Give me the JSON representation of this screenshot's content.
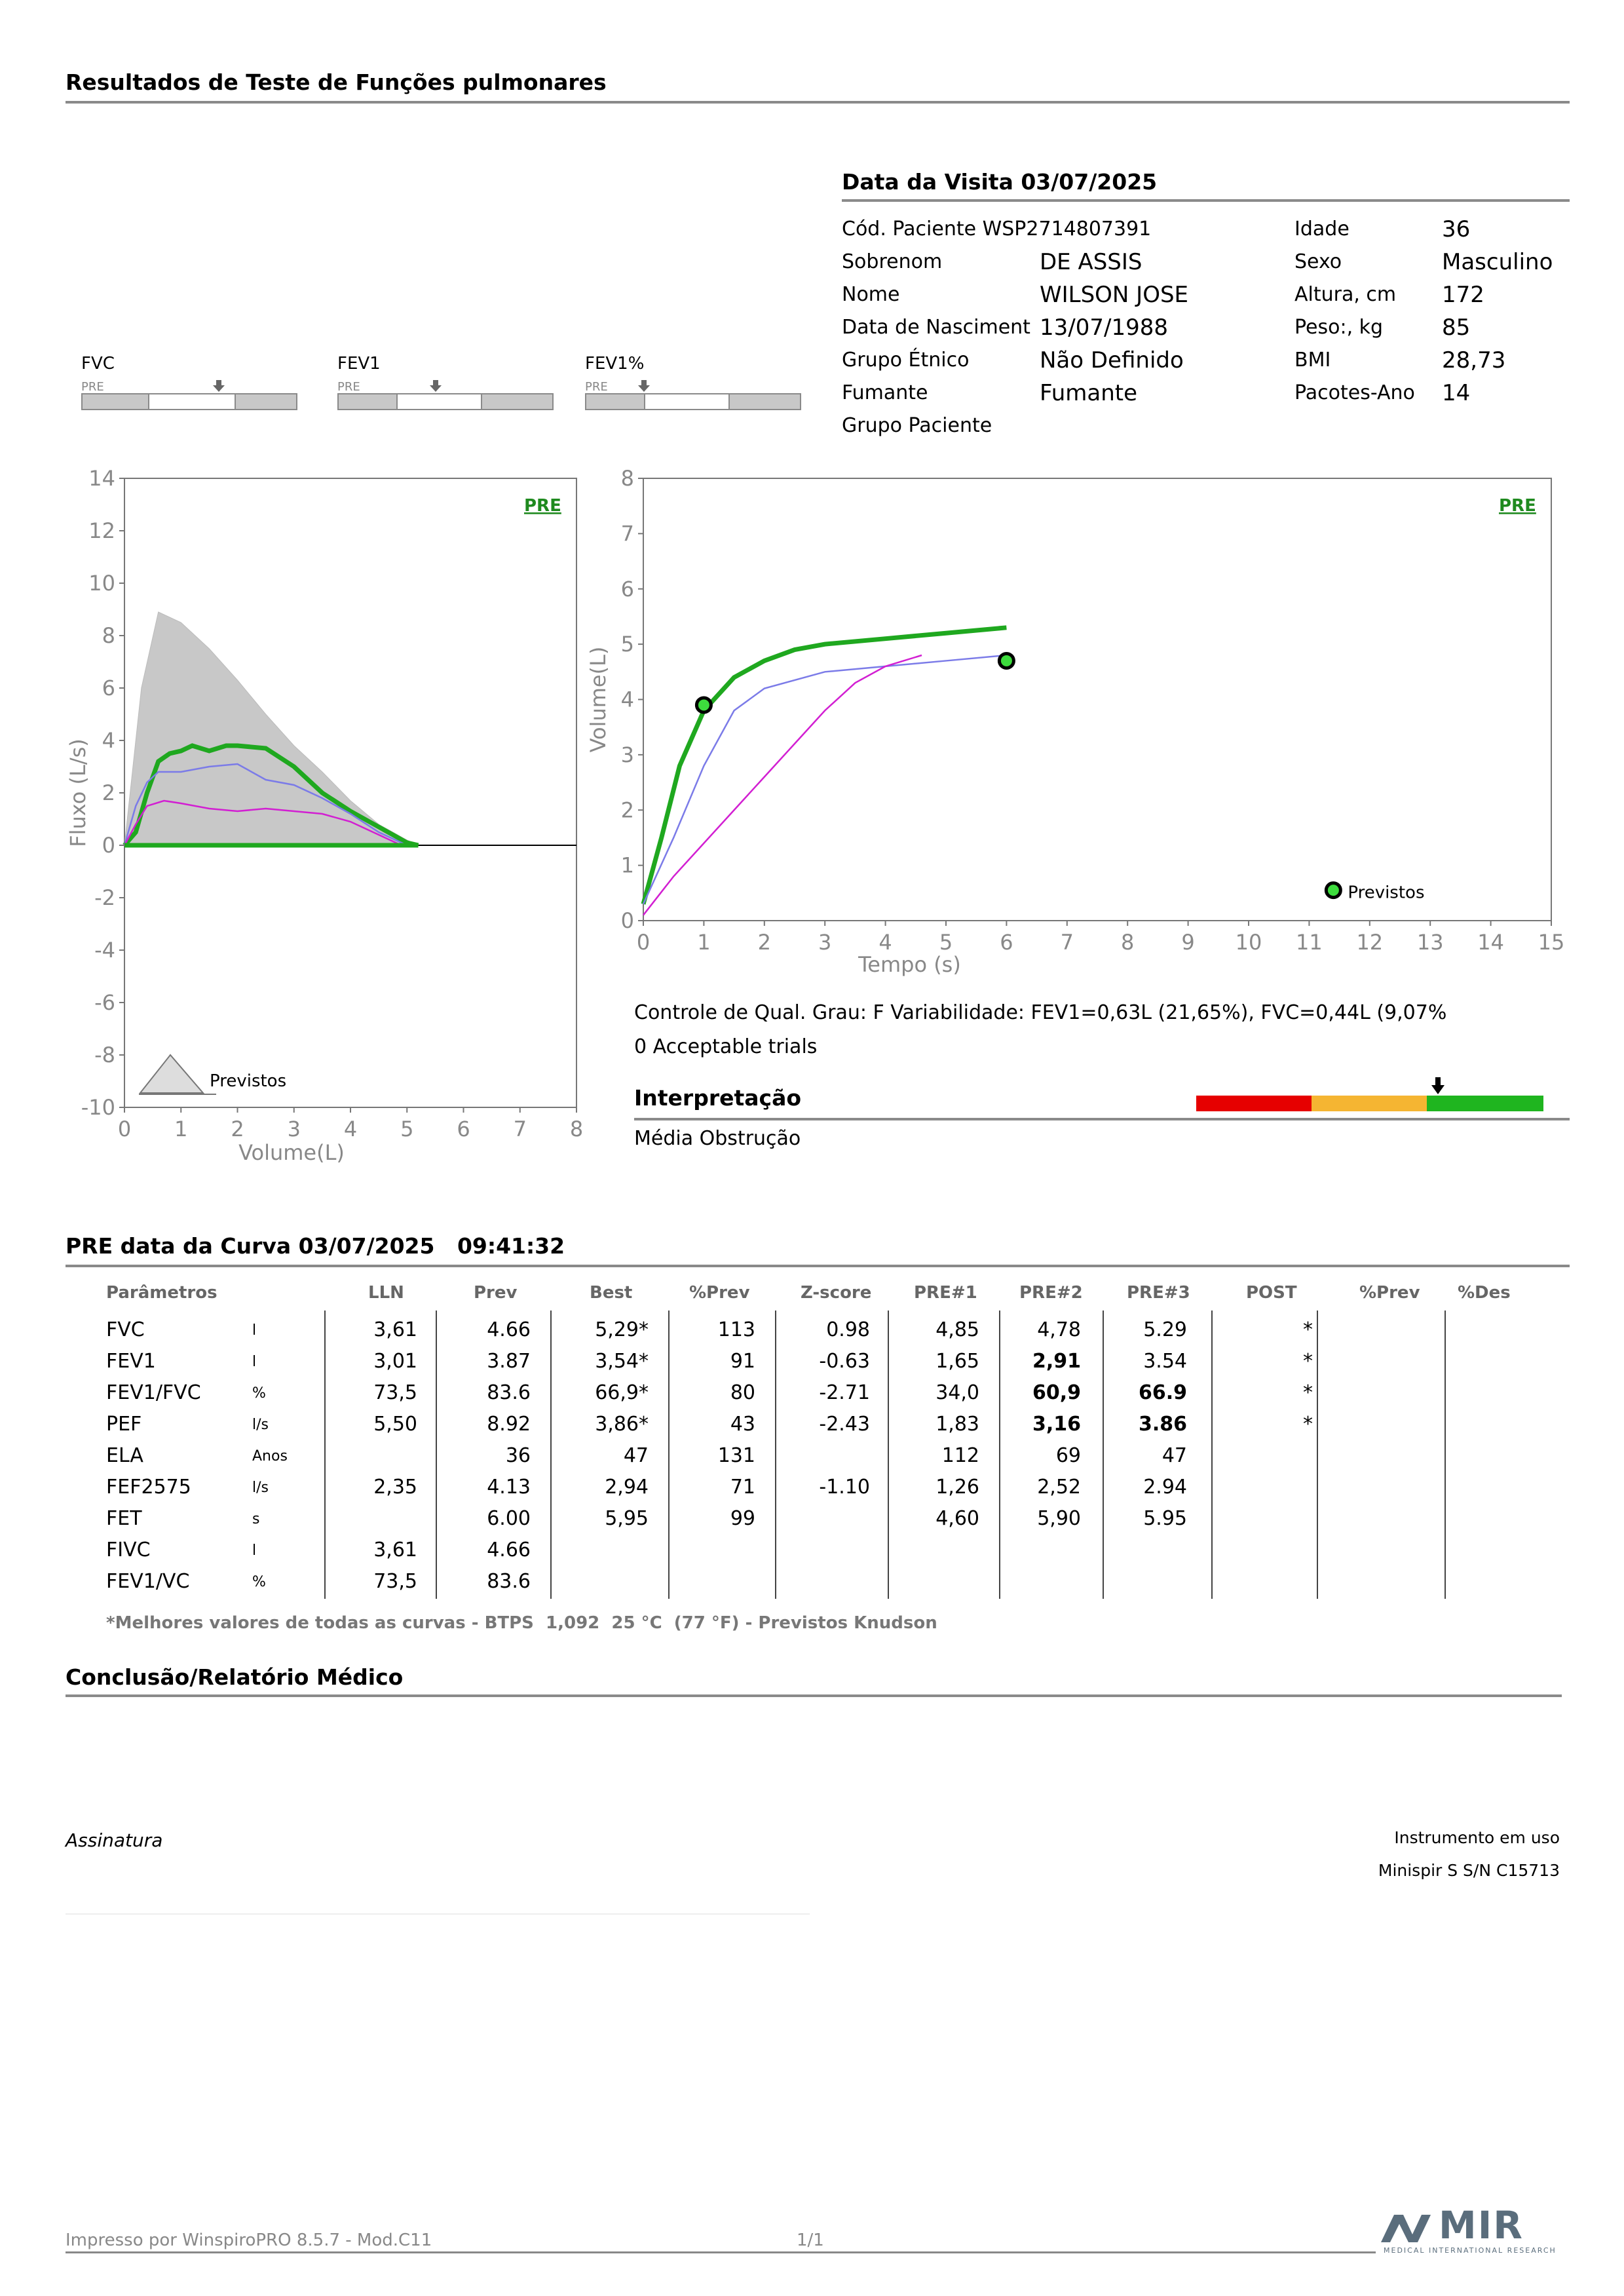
{
  "header": {
    "title": "Resultados de Teste de Funções pulmonares",
    "visit": "Data da Visita 03/07/2025"
  },
  "patient": {
    "cod": "Cód. Paciente WSP2714807391",
    "rows_left": [
      {
        "label": "Sobrenom",
        "value": "DE ASSIS"
      },
      {
        "label": "Nome",
        "value": "WILSON JOSE"
      },
      {
        "label": "Data de Nasciment",
        "value": "13/07/1988"
      },
      {
        "label": "Grupo Étnico",
        "value": "Não Definido"
      },
      {
        "label": "Fumante",
        "value": "Fumante"
      },
      {
        "label": "Grupo Paciente",
        "value": ""
      }
    ],
    "rows_right": [
      {
        "label": "Idade",
        "value": "36"
      },
      {
        "label": "Sexo",
        "value": "Masculino"
      },
      {
        "label": "Altura, cm",
        "value": "172"
      },
      {
        "label": "Peso:, kg",
        "value": "85"
      },
      {
        "label": "BMI",
        "value": "28,73"
      },
      {
        "label": "Pacotes-Ano",
        "value": "14"
      }
    ]
  },
  "gauges": [
    {
      "name": "FVC",
      "tag": "PRE"
    },
    {
      "name": "FEV1",
      "tag": "PRE"
    },
    {
      "name": "FEV1%",
      "tag": "PRE"
    }
  ],
  "flow_chart": {
    "tag": "PRE",
    "ylabel": "Fluxo (L/s)",
    "xlabel": "Volume(L)",
    "yticks": [
      "14",
      "12",
      "10",
      "8",
      "6",
      "4",
      "2",
      "0",
      "-2",
      "-4",
      "-6",
      "-8",
      "-10"
    ],
    "xticks": [
      "0",
      "1",
      "2",
      "3",
      "4",
      "5",
      "6",
      "7",
      "8"
    ],
    "legend": "Previstos"
  },
  "volume_chart": {
    "tag": "PRE",
    "ylabel": "Volume(L)",
    "xlabel": "Tempo (s)",
    "yticks": [
      "8",
      "7",
      "6",
      "5",
      "4",
      "3",
      "2",
      "1",
      "0"
    ],
    "xticks": [
      "0",
      "1",
      "2",
      "3",
      "4",
      "5",
      "6",
      "7",
      "8",
      "9",
      "10",
      "11",
      "12",
      "13",
      "14",
      "15"
    ],
    "legend": "Previstos"
  },
  "chart_data": [
    {
      "type": "line",
      "xlabel": "Volume(L)",
      "ylabel": "Fluxo (L/s)",
      "xlim": [
        0,
        8
      ],
      "ylim": [
        -10,
        14
      ],
      "series": [
        {
          "color": "#c8c8c8",
          "x": [
            0,
            0.3,
            0.6,
            1.0,
            1.5,
            2.0,
            2.5,
            3.0,
            3.5,
            4.0,
            4.5,
            5.0,
            5.2
          ],
          "y": [
            0,
            6,
            8.9,
            8.5,
            7.5,
            6.3,
            5.0,
            3.8,
            2.8,
            1.7,
            0.8,
            0.2,
            0
          ]
        },
        {
          "color": "#1fa81f",
          "x": [
            0,
            0.2,
            0.4,
            0.6,
            0.8,
            1.0,
            1.2,
            1.5,
            1.8,
            2.0,
            2.5,
            3.0,
            3.5,
            4.0,
            4.5,
            5.0,
            5.2
          ],
          "y": [
            0,
            0.5,
            2.0,
            3.2,
            3.5,
            3.6,
            3.8,
            3.6,
            3.8,
            3.8,
            3.7,
            3.0,
            2.0,
            1.3,
            0.7,
            0.1,
            0
          ]
        },
        {
          "color": "#7b7be8",
          "x": [
            0,
            0.2,
            0.4,
            0.6,
            1.0,
            1.5,
            2.0,
            2.5,
            3.0,
            3.5,
            4.0,
            4.5,
            5.0
          ],
          "y": [
            0,
            1.5,
            2.4,
            2.8,
            2.8,
            3.0,
            3.1,
            2.5,
            2.3,
            1.8,
            1.2,
            0.5,
            0
          ]
        },
        {
          "color": "#d21fd2",
          "x": [
            0,
            0.2,
            0.4,
            0.7,
            1.0,
            1.5,
            2.0,
            2.5,
            3.0,
            3.5,
            4.0,
            4.5,
            4.9
          ],
          "y": [
            0,
            0.8,
            1.5,
            1.7,
            1.6,
            1.4,
            1.3,
            1.4,
            1.3,
            1.2,
            0.9,
            0.4,
            0
          ]
        }
      ]
    },
    {
      "type": "line",
      "xlabel": "Tempo (s)",
      "ylabel": "Volume(L)",
      "xlim": [
        0,
        15
      ],
      "ylim": [
        0,
        8
      ],
      "series": [
        {
          "color": "#1fa81f",
          "x": [
            0,
            0.3,
            0.6,
            1.0,
            1.5,
            2.0,
            2.5,
            3.0,
            4.0,
            5.0,
            6.0
          ],
          "y": [
            0.3,
            1.5,
            2.8,
            3.8,
            4.4,
            4.7,
            4.9,
            5.0,
            5.1,
            5.2,
            5.3
          ]
        },
        {
          "color": "#7b7be8",
          "x": [
            0,
            0.5,
            1.0,
            1.5,
            2.0,
            3.0,
            4.0,
            5.0,
            6.0
          ],
          "y": [
            0.3,
            1.5,
            2.8,
            3.8,
            4.2,
            4.5,
            4.6,
            4.7,
            4.8
          ]
        },
        {
          "color": "#d21fd2",
          "x": [
            0,
            0.5,
            1.0,
            1.5,
            2.0,
            2.5,
            3.0,
            3.5,
            4.0,
            4.6
          ],
          "y": [
            0.1,
            0.8,
            1.4,
            2.0,
            2.6,
            3.2,
            3.8,
            4.3,
            4.6,
            4.8
          ]
        }
      ],
      "markers": [
        {
          "x": 1.0,
          "y": 3.9
        },
        {
          "x": 6.0,
          "y": 4.7
        },
        {
          "x": 11.4,
          "y": 0.55
        }
      ]
    }
  ],
  "quality": {
    "line1": "Controle de Qual. Grau: F    Variabilidade: FEV1=0,63L (21,65%), FVC=0,44L (9,07%",
    "line2": "0 Acceptable trials",
    "interp_title": "Interpretação",
    "interp_value": "Média Obstrução",
    "colors": [
      "#e60000",
      "#f5b532",
      "#1fb51f"
    ]
  },
  "curve": {
    "title": "PRE data da Curva 03/07/2025   09:41:32",
    "headers": [
      "Parâmetros",
      "LLN",
      "Prev",
      "Best",
      "%Prev",
      "Z-score",
      "PRE#1",
      "PRE#2",
      "PRE#3",
      "POST",
      "%Prev",
      "%Des"
    ],
    "rows": [
      [
        "FVC",
        "l",
        "3,61",
        "4.66",
        "5,29*",
        "113",
        "0.98",
        "4,85",
        "4,78",
        "5.29",
        "*"
      ],
      [
        "FEV1",
        "l",
        "3,01",
        "3.87",
        "3,54*",
        "91",
        "-0.63",
        "1,65",
        "2,91",
        "3.54",
        "*"
      ],
      [
        "FEV1/FVC",
        "%",
        "73,5",
        "83.6",
        "66,9*",
        "80",
        "-2.71",
        "34,0",
        "60,9",
        "66.9",
        "*"
      ],
      [
        "PEF",
        "l/s",
        "5,50",
        "8.92",
        "3,86*",
        "43",
        "-2.43",
        "1,83",
        "3,16",
        "3.86",
        "*"
      ],
      [
        "ELA",
        "Anos",
        "",
        "36",
        "47",
        "131",
        "",
        "112",
        "69",
        "47",
        ""
      ],
      [
        "FEF2575",
        "l/s",
        "2,35",
        "4.13",
        "2,94",
        "71",
        "-1.10",
        "1,26",
        "2,52",
        "2.94",
        ""
      ],
      [
        "FET",
        "s",
        "",
        "6.00",
        "5,95",
        "99",
        "",
        "4,60",
        "5,90",
        "5.95",
        ""
      ],
      [
        "FIVC",
        "l",
        "3,61",
        "4.66",
        "",
        "",
        "",
        "",
        "",
        "",
        ""
      ],
      [
        "FEV1/VC",
        "%",
        "73,5",
        "83.6",
        "",
        "",
        "",
        "",
        "",
        "",
        ""
      ]
    ],
    "footnote": "*Melhores valores de todas as curvas - BTPS  1,092  25 °C  (77 °F) - Previstos Knudson"
  },
  "conclusion": {
    "title": "Conclusão/Relatório Médico",
    "signature": "Assinatura",
    "instrument_label": "Instrumento em uso",
    "instrument": "Minispir S S/N C15713"
  },
  "footer": {
    "printed": "Impresso por WinspiroPRO  8.5.7 - Mod.C11",
    "page": "1/1",
    "logo": "MIR",
    "logo_sub": "MEDICAL INTERNATIONAL RESEARCH"
  }
}
